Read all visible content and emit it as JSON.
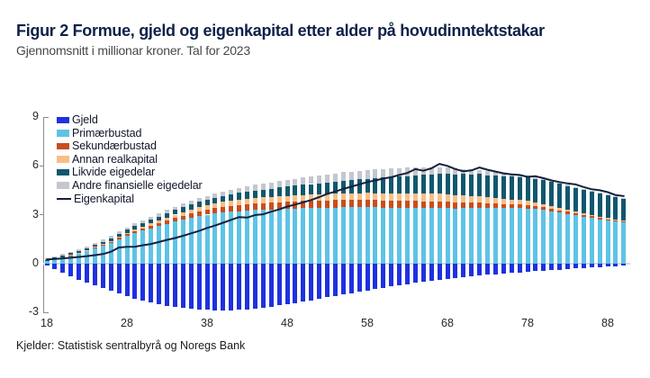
{
  "title": "Figur 2 Formue, gjeld og eigenkapital etter alder på hovudinntektstakar",
  "subtitle": "Gjennomsnitt i millionar kroner. Tal for 2023",
  "source": "Kjelder: Statistisk sentralbyrå og Noregs Bank",
  "colors": {
    "gjeld": "#1e31e0",
    "primarbustad": "#5ec3e6",
    "sekundarbustad": "#c84e1e",
    "annan_realkapital": "#f9be85",
    "likvide_eigedelar": "#0f576e",
    "andre_finansielle": "#c3c7ce",
    "eigenkapital_line": "#14213d",
    "zero_gridline": "#d9d9d9",
    "axis": "#8c8c8c",
    "title_text": "#0f2149"
  },
  "legend": {
    "items": [
      {
        "label": "Gjeld",
        "color": "#1e31e0",
        "type": "box"
      },
      {
        "label": "Primærbustad",
        "color": "#5ec3e6",
        "type": "box"
      },
      {
        "label": "Sekundærbustad",
        "color": "#c84e1e",
        "type": "box"
      },
      {
        "label": "Annan realkapital",
        "color": "#f9be85",
        "type": "box"
      },
      {
        "label": "Likvide eigedelar",
        "color": "#0f576e",
        "type": "box"
      },
      {
        "label": "Andre finansielle eigedelar",
        "color": "#c3c7ce",
        "type": "box"
      },
      {
        "label": "Eigenkapital",
        "color": "#14213d",
        "type": "line"
      }
    ]
  },
  "y_axis": {
    "ticks": [
      9,
      6,
      3,
      0,
      -3
    ]
  },
  "x_axis": {
    "ticks": [
      18,
      28,
      38,
      48,
      58,
      68,
      78,
      88
    ]
  },
  "chart_data": {
    "type": "bar",
    "stacked": true,
    "title": "Figur 2 Formue, gjeld og eigenkapital etter alder på hovudinntektstakar",
    "subtitle": "Gjennomsnitt i millionar kroner. Tal for 2023",
    "xlabel": "Alder på hovudinntektstakar",
    "ylabel": "Millionar kroner",
    "ylim": [
      -3,
      9
    ],
    "legend_position": "top-left-inside",
    "x": [
      18,
      19,
      20,
      21,
      22,
      23,
      24,
      25,
      26,
      27,
      28,
      29,
      30,
      31,
      32,
      33,
      34,
      35,
      36,
      37,
      38,
      39,
      40,
      41,
      42,
      43,
      44,
      45,
      46,
      47,
      48,
      49,
      50,
      51,
      52,
      53,
      54,
      55,
      56,
      57,
      58,
      59,
      60,
      61,
      62,
      63,
      64,
      65,
      66,
      67,
      68,
      69,
      70,
      71,
      72,
      73,
      74,
      75,
      76,
      77,
      78,
      79,
      80,
      81,
      82,
      83,
      84,
      85,
      86,
      87,
      88,
      89,
      90
    ],
    "series": [
      {
        "name": "Gjeld",
        "render": "bar",
        "color": "#1e31e0",
        "values": [
          -0.15,
          -0.35,
          -0.55,
          -0.78,
          -1.0,
          -1.18,
          -1.35,
          -1.52,
          -1.68,
          -1.85,
          -2.0,
          -2.15,
          -2.28,
          -2.4,
          -2.5,
          -2.6,
          -2.68,
          -2.74,
          -2.78,
          -2.82,
          -2.85,
          -2.87,
          -2.88,
          -2.87,
          -2.85,
          -2.82,
          -2.78,
          -2.72,
          -2.65,
          -2.58,
          -2.5,
          -2.42,
          -2.34,
          -2.26,
          -2.17,
          -2.08,
          -2.0,
          -1.92,
          -1.83,
          -1.74,
          -1.66,
          -1.58,
          -1.5,
          -1.42,
          -1.34,
          -1.27,
          -1.2,
          -1.13,
          -1.07,
          -1.0,
          -0.94,
          -0.89,
          -0.84,
          -0.79,
          -0.74,
          -0.7,
          -0.66,
          -0.62,
          -0.58,
          -0.55,
          -0.52,
          -0.48,
          -0.45,
          -0.41,
          -0.38,
          -0.34,
          -0.31,
          -0.28,
          -0.25,
          -0.22,
          -0.2,
          -0.17,
          -0.15
        ]
      },
      {
        "name": "Primærbustad",
        "render": "bar",
        "color": "#5ec3e6",
        "values": [
          0.15,
          0.26,
          0.38,
          0.5,
          0.62,
          0.76,
          0.92,
          1.08,
          1.25,
          1.48,
          1.7,
          1.88,
          2.02,
          2.16,
          2.3,
          2.43,
          2.56,
          2.68,
          2.79,
          2.9,
          3.0,
          3.07,
          3.13,
          3.18,
          3.22,
          3.26,
          3.29,
          3.31,
          3.33,
          3.35,
          3.37,
          3.38,
          3.4,
          3.41,
          3.42,
          3.43,
          3.44,
          3.45,
          3.45,
          3.46,
          3.46,
          3.45,
          3.44,
          3.43,
          3.43,
          3.42,
          3.43,
          3.42,
          3.42,
          3.43,
          3.41,
          3.38,
          3.4,
          3.41,
          3.43,
          3.4,
          3.41,
          3.4,
          3.39,
          3.4,
          3.38,
          3.34,
          3.28,
          3.2,
          3.12,
          3.03,
          2.95,
          2.86,
          2.78,
          2.7,
          2.62,
          2.56,
          2.52
        ]
      },
      {
        "name": "Sekundærbustad",
        "render": "bar",
        "color": "#c84e1e",
        "values": [
          0.0,
          0.0,
          0.0,
          0.01,
          0.02,
          0.03,
          0.05,
          0.06,
          0.08,
          0.09,
          0.1,
          0.12,
          0.14,
          0.16,
          0.18,
          0.21,
          0.23,
          0.25,
          0.27,
          0.29,
          0.3,
          0.32,
          0.34,
          0.35,
          0.37,
          0.38,
          0.39,
          0.4,
          0.41,
          0.42,
          0.42,
          0.43,
          0.43,
          0.44,
          0.44,
          0.44,
          0.45,
          0.45,
          0.45,
          0.45,
          0.45,
          0.44,
          0.44,
          0.43,
          0.42,
          0.42,
          0.41,
          0.4,
          0.39,
          0.38,
          0.37,
          0.36,
          0.34,
          0.32,
          0.31,
          0.29,
          0.27,
          0.25,
          0.24,
          0.22,
          0.21,
          0.19,
          0.18,
          0.16,
          0.15,
          0.14,
          0.13,
          0.12,
          0.11,
          0.1,
          0.1,
          0.09,
          0.08
        ]
      },
      {
        "name": "Annan realkapital",
        "render": "bar",
        "color": "#f9be85",
        "values": [
          0.0,
          0.0,
          0.01,
          0.01,
          0.02,
          0.03,
          0.04,
          0.05,
          0.06,
          0.07,
          0.08,
          0.1,
          0.12,
          0.14,
          0.16,
          0.19,
          0.21,
          0.23,
          0.25,
          0.27,
          0.28,
          0.3,
          0.31,
          0.32,
          0.33,
          0.34,
          0.35,
          0.35,
          0.36,
          0.36,
          0.37,
          0.37,
          0.38,
          0.38,
          0.39,
          0.39,
          0.4,
          0.4,
          0.41,
          0.41,
          0.42,
          0.43,
          0.44,
          0.44,
          0.45,
          0.46,
          0.46,
          0.47,
          0.47,
          0.47,
          0.47,
          0.46,
          0.45,
          0.43,
          0.41,
          0.38,
          0.35,
          0.32,
          0.3,
          0.27,
          0.25,
          0.22,
          0.2,
          0.18,
          0.16,
          0.14,
          0.12,
          0.11,
          0.09,
          0.08,
          0.07,
          0.06,
          0.05
        ]
      },
      {
        "name": "Likvide eigedelar",
        "render": "bar",
        "color": "#0f576e",
        "values": [
          0.08,
          0.09,
          0.1,
          0.11,
          0.12,
          0.13,
          0.14,
          0.15,
          0.16,
          0.17,
          0.18,
          0.2,
          0.21,
          0.23,
          0.24,
          0.26,
          0.28,
          0.3,
          0.31,
          0.32,
          0.33,
          0.35,
          0.37,
          0.39,
          0.41,
          0.43,
          0.45,
          0.48,
          0.5,
          0.53,
          0.56,
          0.59,
          0.62,
          0.65,
          0.68,
          0.71,
          0.74,
          0.78,
          0.81,
          0.84,
          0.87,
          0.91,
          0.95,
          0.99,
          1.03,
          1.07,
          1.11,
          1.15,
          1.18,
          1.21,
          1.25,
          1.28,
          1.3,
          1.32,
          1.34,
          1.36,
          1.38,
          1.4,
          1.42,
          1.43,
          1.45,
          1.46,
          1.46,
          1.46,
          1.46,
          1.45,
          1.45,
          1.44,
          1.43,
          1.42,
          1.41,
          1.38,
          1.36
        ]
      },
      {
        "name": "Andre finansielle eigedelar",
        "render": "bar",
        "color": "#c3c7ce",
        "values": [
          0.07,
          0.08,
          0.08,
          0.09,
          0.1,
          0.1,
          0.11,
          0.12,
          0.13,
          0.14,
          0.15,
          0.16,
          0.17,
          0.18,
          0.19,
          0.2,
          0.21,
          0.22,
          0.23,
          0.24,
          0.25,
          0.27,
          0.28,
          0.3,
          0.31,
          0.33,
          0.35,
          0.36,
          0.38,
          0.39,
          0.41,
          0.43,
          0.44,
          0.46,
          0.47,
          0.49,
          0.5,
          0.52,
          0.53,
          0.54,
          0.55,
          0.55,
          0.55,
          0.55,
          0.54,
          0.53,
          0.51,
          0.49,
          0.46,
          0.43,
          0.4,
          0.36,
          0.32,
          0.29,
          0.26,
          0.23,
          0.2,
          0.18,
          0.16,
          0.14,
          0.12,
          0.11,
          0.1,
          0.09,
          0.08,
          0.07,
          0.06,
          0.06,
          0.05,
          0.05,
          0.04,
          0.04,
          0.03
        ]
      },
      {
        "name": "Eigenkapital",
        "render": "line",
        "color": "#14213d",
        "values": [
          0.25,
          0.28,
          0.31,
          0.35,
          0.4,
          0.45,
          0.51,
          0.58,
          0.72,
          0.98,
          1.02,
          1.03,
          1.12,
          1.2,
          1.32,
          1.45,
          1.56,
          1.7,
          1.85,
          2.0,
          2.18,
          2.33,
          2.5,
          2.68,
          2.85,
          2.82,
          2.98,
          3.02,
          3.18,
          3.32,
          3.5,
          3.62,
          3.76,
          3.9,
          4.08,
          4.28,
          4.42,
          4.58,
          4.72,
          4.86,
          5.0,
          5.1,
          5.22,
          5.3,
          5.44,
          5.56,
          5.8,
          5.7,
          5.85,
          6.12,
          6.0,
          5.8,
          5.66,
          5.72,
          5.9,
          5.76,
          5.65,
          5.54,
          5.48,
          5.44,
          5.32,
          5.36,
          5.24,
          5.1,
          5.0,
          4.92,
          4.86,
          4.7,
          4.56,
          4.5,
          4.38,
          4.2,
          4.14
        ]
      }
    ]
  }
}
